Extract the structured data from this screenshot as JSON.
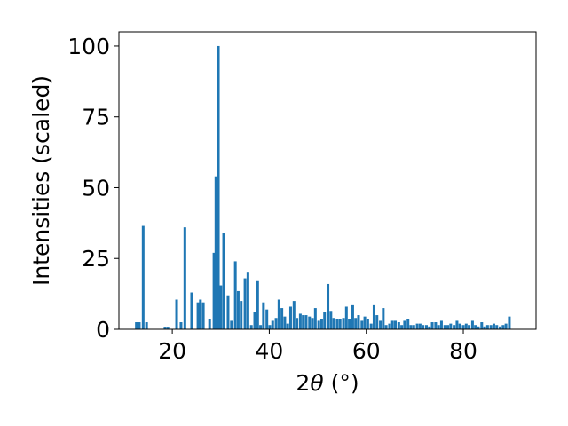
{
  "chart_data": {
    "type": "bar",
    "xlabel_main": "2",
    "xlabel_theta": "θ",
    "xlabel_unit": "(°)",
    "ylabel": "Intensities (scaled)",
    "xlim": [
      9,
      95
    ],
    "ylim": [
      0,
      105
    ],
    "xticks": [
      20,
      40,
      60,
      80
    ],
    "yticks": [
      0,
      25,
      50,
      75,
      100
    ],
    "bar_width": 0.55,
    "grid": false,
    "color": "#1f77b4",
    "bars": [
      {
        "x": 12.6,
        "y": 2.5
      },
      {
        "x": 13.2,
        "y": 2.5
      },
      {
        "x": 14.0,
        "y": 36.5
      },
      {
        "x": 14.7,
        "y": 2.5
      },
      {
        "x": 18.5,
        "y": 0.6
      },
      {
        "x": 19.1,
        "y": 0.6
      },
      {
        "x": 20.9,
        "y": 10.5
      },
      {
        "x": 21.8,
        "y": 2.5
      },
      {
        "x": 22.6,
        "y": 36.0
      },
      {
        "x": 24.0,
        "y": 13.0
      },
      {
        "x": 25.3,
        "y": 9.5
      },
      {
        "x": 25.8,
        "y": 10.5
      },
      {
        "x": 26.4,
        "y": 9.5
      },
      {
        "x": 27.7,
        "y": 3.5
      },
      {
        "x": 28.6,
        "y": 27.0
      },
      {
        "x": 29.0,
        "y": 54.0
      },
      {
        "x": 29.5,
        "y": 100.0
      },
      {
        "x": 30.0,
        "y": 15.5
      },
      {
        "x": 30.6,
        "y": 34.0
      },
      {
        "x": 31.5,
        "y": 12.0
      },
      {
        "x": 32.2,
        "y": 3.0
      },
      {
        "x": 33.0,
        "y": 24.0
      },
      {
        "x": 33.6,
        "y": 13.5
      },
      {
        "x": 34.2,
        "y": 10.0
      },
      {
        "x": 35.0,
        "y": 18.0
      },
      {
        "x": 35.6,
        "y": 20.0
      },
      {
        "x": 36.3,
        "y": 1.5
      },
      {
        "x": 37.0,
        "y": 6.0
      },
      {
        "x": 37.6,
        "y": 17.0
      },
      {
        "x": 38.2,
        "y": 1.5
      },
      {
        "x": 38.8,
        "y": 9.5
      },
      {
        "x": 39.5,
        "y": 7.0
      },
      {
        "x": 40.1,
        "y": 1.5
      },
      {
        "x": 40.7,
        "y": 3.0
      },
      {
        "x": 41.4,
        "y": 4.0
      },
      {
        "x": 42.0,
        "y": 10.5
      },
      {
        "x": 42.6,
        "y": 7.5
      },
      {
        "x": 43.2,
        "y": 4.5
      },
      {
        "x": 43.8,
        "y": 2.0
      },
      {
        "x": 44.4,
        "y": 8.0
      },
      {
        "x": 45.1,
        "y": 10.0
      },
      {
        "x": 45.7,
        "y": 4.0
      },
      {
        "x": 46.4,
        "y": 5.5
      },
      {
        "x": 47.0,
        "y": 5.0
      },
      {
        "x": 47.6,
        "y": 5.0
      },
      {
        "x": 48.3,
        "y": 4.5
      },
      {
        "x": 48.9,
        "y": 4.0
      },
      {
        "x": 49.5,
        "y": 7.5
      },
      {
        "x": 50.2,
        "y": 3.0
      },
      {
        "x": 50.8,
        "y": 3.5
      },
      {
        "x": 51.4,
        "y": 6.0
      },
      {
        "x": 52.1,
        "y": 16.0
      },
      {
        "x": 52.7,
        "y": 6.5
      },
      {
        "x": 53.3,
        "y": 4.0
      },
      {
        "x": 54.0,
        "y": 3.5
      },
      {
        "x": 54.6,
        "y": 3.5
      },
      {
        "x": 55.3,
        "y": 4.0
      },
      {
        "x": 55.9,
        "y": 8.0
      },
      {
        "x": 56.5,
        "y": 3.5
      },
      {
        "x": 57.2,
        "y": 8.5
      },
      {
        "x": 57.8,
        "y": 4.0
      },
      {
        "x": 58.4,
        "y": 5.0
      },
      {
        "x": 59.1,
        "y": 3.0
      },
      {
        "x": 59.7,
        "y": 4.5
      },
      {
        "x": 60.3,
        "y": 3.5
      },
      {
        "x": 61.0,
        "y": 2.0
      },
      {
        "x": 61.6,
        "y": 8.5
      },
      {
        "x": 62.2,
        "y": 5.0
      },
      {
        "x": 62.9,
        "y": 3.0
      },
      {
        "x": 63.5,
        "y": 7.5
      },
      {
        "x": 64.1,
        "y": 1.5
      },
      {
        "x": 64.8,
        "y": 2.0
      },
      {
        "x": 65.4,
        "y": 3.0
      },
      {
        "x": 66.0,
        "y": 3.0
      },
      {
        "x": 66.7,
        "y": 2.5
      },
      {
        "x": 67.3,
        "y": 1.5
      },
      {
        "x": 67.9,
        "y": 3.0
      },
      {
        "x": 68.6,
        "y": 3.5
      },
      {
        "x": 69.2,
        "y": 1.5
      },
      {
        "x": 69.8,
        "y": 1.5
      },
      {
        "x": 70.5,
        "y": 2.0
      },
      {
        "x": 71.1,
        "y": 2.0
      },
      {
        "x": 71.7,
        "y": 1.5
      },
      {
        "x": 72.4,
        "y": 1.5
      },
      {
        "x": 73.0,
        "y": 1.0
      },
      {
        "x": 73.6,
        "y": 2.5
      },
      {
        "x": 74.3,
        "y": 2.5
      },
      {
        "x": 74.9,
        "y": 1.5
      },
      {
        "x": 75.5,
        "y": 3.0
      },
      {
        "x": 76.2,
        "y": 1.5
      },
      {
        "x": 76.8,
        "y": 1.5
      },
      {
        "x": 77.4,
        "y": 2.0
      },
      {
        "x": 78.1,
        "y": 1.5
      },
      {
        "x": 78.7,
        "y": 3.0
      },
      {
        "x": 79.3,
        "y": 2.0
      },
      {
        "x": 80.0,
        "y": 1.5
      },
      {
        "x": 80.6,
        "y": 2.0
      },
      {
        "x": 81.2,
        "y": 1.5
      },
      {
        "x": 81.9,
        "y": 3.0
      },
      {
        "x": 82.5,
        "y": 1.5
      },
      {
        "x": 83.1,
        "y": 1.0
      },
      {
        "x": 83.8,
        "y": 2.5
      },
      {
        "x": 84.4,
        "y": 1.0
      },
      {
        "x": 85.0,
        "y": 1.5
      },
      {
        "x": 85.7,
        "y": 1.5
      },
      {
        "x": 86.3,
        "y": 2.0
      },
      {
        "x": 86.9,
        "y": 1.5
      },
      {
        "x": 87.6,
        "y": 1.0
      },
      {
        "x": 88.2,
        "y": 1.5
      },
      {
        "x": 88.8,
        "y": 2.0
      },
      {
        "x": 89.5,
        "y": 4.5
      }
    ]
  }
}
